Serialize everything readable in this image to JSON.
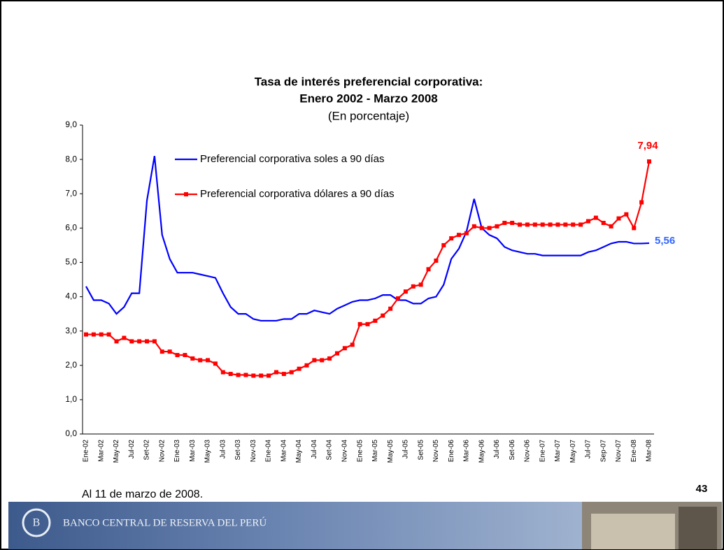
{
  "chart_data": {
    "type": "line",
    "title": "Tasa de interés preferencial corporativa:",
    "subtitle": "Enero 2002 - Marzo 2008",
    "units": "(En porcentaje)",
    "categories": [
      "Ene-02",
      null,
      "Mar-02",
      null,
      "May-02",
      null,
      "Jul-02",
      null,
      "Set-02",
      null,
      "Nov-02",
      null,
      "Ene-03",
      null,
      "Mar-03",
      null,
      "May-03",
      null,
      "Jul-03",
      null,
      "Set-03",
      null,
      "Nov-03",
      null,
      "Ene-04",
      null,
      "Mar-04",
      null,
      "May-04",
      null,
      "Jul-04",
      null,
      "Set-04",
      null,
      "Nov-04",
      null,
      "Ene-05",
      null,
      "Mar-05",
      null,
      "May-05",
      null,
      "Jul-05",
      null,
      "Set-05",
      null,
      "Nov-05",
      null,
      "Ene-06",
      null,
      "Mar-06",
      null,
      "May-06",
      null,
      "Jul-06",
      null,
      "Set-06",
      null,
      "Nov-06",
      null,
      "Ene-07",
      null,
      "Mar-07",
      null,
      "May-07",
      null,
      "Jul-07",
      null,
      "Sep-07",
      null,
      "Nov-07",
      null,
      "Ene-08",
      null,
      "Mar-08"
    ],
    "series": [
      {
        "name": "Preferencial corporativa soles a 90 días",
        "color": "#0000ff",
        "marker": false,
        "values": [
          4.3,
          3.9,
          3.9,
          3.8,
          3.5,
          3.7,
          4.1,
          4.1,
          6.8,
          8.1,
          5.8,
          5.1,
          4.7,
          4.7,
          4.7,
          4.65,
          4.6,
          4.55,
          4.1,
          3.7,
          3.5,
          3.5,
          3.35,
          3.3,
          3.3,
          3.3,
          3.35,
          3.35,
          3.5,
          3.5,
          3.6,
          3.55,
          3.5,
          3.65,
          3.75,
          3.85,
          3.9,
          3.9,
          3.95,
          4.05,
          4.05,
          3.9,
          3.9,
          3.8,
          3.8,
          3.95,
          4.0,
          4.35,
          5.1,
          5.4,
          5.9,
          6.85,
          6.0,
          5.8,
          5.7,
          5.45,
          5.35,
          5.3,
          5.25,
          5.25,
          5.2,
          5.2,
          5.2,
          5.2,
          5.2,
          5.2,
          5.3,
          5.35,
          5.45,
          5.55,
          5.6,
          5.6,
          5.55,
          5.55,
          5.56
        ],
        "value_labels": {
          "74": "5,56"
        },
        "label_color": "#3366ff"
      },
      {
        "name": "Preferencial corporativa dólares a 90 días",
        "color": "#ff0000",
        "marker": true,
        "values": [
          2.9,
          2.9,
          2.9,
          2.9,
          2.7,
          2.8,
          2.7,
          2.7,
          2.7,
          2.7,
          2.4,
          2.4,
          2.3,
          2.3,
          2.2,
          2.15,
          2.15,
          2.05,
          1.8,
          1.75,
          1.72,
          1.72,
          1.7,
          1.7,
          1.7,
          1.8,
          1.75,
          1.8,
          1.9,
          2.0,
          2.15,
          2.15,
          2.2,
          2.35,
          2.5,
          2.6,
          3.2,
          3.2,
          3.3,
          3.45,
          3.65,
          3.95,
          4.15,
          4.3,
          4.35,
          4.8,
          5.05,
          5.5,
          5.7,
          5.8,
          5.85,
          6.05,
          6.0,
          6.0,
          6.05,
          6.15,
          6.15,
          6.1,
          6.1,
          6.1,
          6.1,
          6.1,
          6.1,
          6.1,
          6.1,
          6.1,
          6.2,
          6.3,
          6.15,
          6.05,
          6.28,
          6.4,
          6.0,
          6.75,
          7.94
        ],
        "value_labels": {
          "74": "7,94"
        },
        "label_color": "#ff0000"
      }
    ],
    "ylim": [
      0,
      9
    ],
    "yticks": [
      {
        "value": 0,
        "label": "0,0"
      },
      {
        "value": 1,
        "label": "1,0"
      },
      {
        "value": 2,
        "label": "2,0"
      },
      {
        "value": 3,
        "label": "3,0"
      },
      {
        "value": 4,
        "label": "4,0"
      },
      {
        "value": 5,
        "label": "5,0"
      },
      {
        "value": 6,
        "label": "6,0"
      },
      {
        "value": 7,
        "label": "7,0"
      },
      {
        "value": 8,
        "label": "8,0"
      },
      {
        "value": 9,
        "label": "9,0"
      }
    ],
    "grid": false
  },
  "footnote": "Al 11 de marzo de 2008.",
  "page_number": "43",
  "banner_text": "BANCO CENTRAL DE RESERVA DEL PERÚ"
}
